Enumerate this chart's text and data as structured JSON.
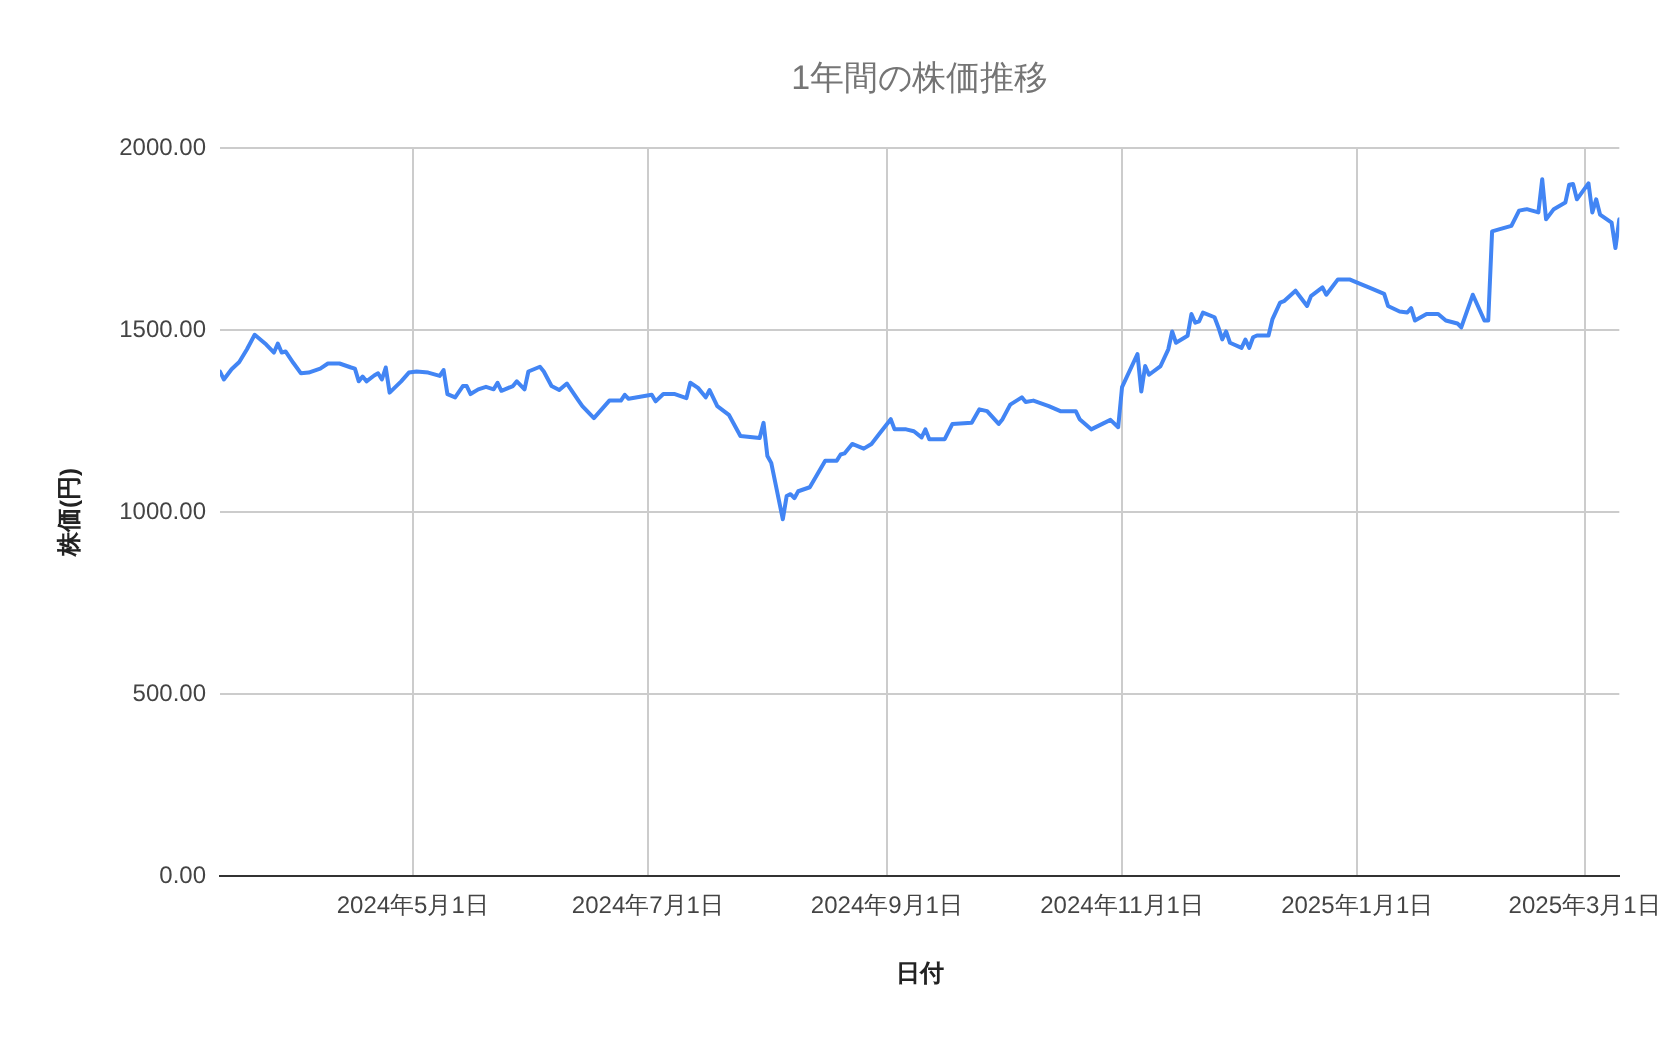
{
  "chart_data": {
    "type": "line",
    "title": "1年間の株価推移",
    "xlabel": "日付",
    "ylabel": "株価(円)",
    "grid": true,
    "marker": "none",
    "line_style": "solid",
    "xlim": [
      "2024-03-12",
      "2025-03-10"
    ],
    "xticks": [
      {
        "value": "2024-05-01",
        "label": "2024年5月1日"
      },
      {
        "value": "2024-07-01",
        "label": "2024年7月1日"
      },
      {
        "value": "2024-09-01",
        "label": "2024年9月1日"
      },
      {
        "value": "2024-11-01",
        "label": "2024年11月1日"
      },
      {
        "value": "2025-01-01",
        "label": "2025年1月1日"
      },
      {
        "value": "2025-03-01",
        "label": "2025年3月1日"
      }
    ],
    "ylim": [
      0,
      2000
    ],
    "yticks": [
      {
        "value": 0,
        "label": "0.00"
      },
      {
        "value": 500,
        "label": "500.00"
      },
      {
        "value": 1000,
        "label": "1000.00"
      },
      {
        "value": 1500,
        "label": "1500.00"
      },
      {
        "value": 2000,
        "label": "2000.00"
      }
    ],
    "x": [
      "2024-03-12",
      "2024-03-13",
      "2024-03-15",
      "2024-03-17",
      "2024-03-19",
      "2024-03-21",
      "2024-03-24",
      "2024-03-26",
      "2024-03-27",
      "2024-03-28",
      "2024-03-29",
      "2024-03-31",
      "2024-04-02",
      "2024-04-04",
      "2024-04-07",
      "2024-04-09",
      "2024-04-12",
      "2024-04-15",
      "2024-04-16",
      "2024-04-17",
      "2024-04-18",
      "2024-04-19",
      "2024-04-21",
      "2024-04-22",
      "2024-04-23",
      "2024-04-24",
      "2024-04-25",
      "2024-04-28",
      "2024-04-30",
      "2024-05-02",
      "2024-05-05",
      "2024-05-08",
      "2024-05-09",
      "2024-05-10",
      "2024-05-12",
      "2024-05-14",
      "2024-05-15",
      "2024-05-16",
      "2024-05-18",
      "2024-05-20",
      "2024-05-22",
      "2024-05-23",
      "2024-05-24",
      "2024-05-27",
      "2024-05-28",
      "2024-05-30",
      "2024-05-31",
      "2024-06-03",
      "2024-06-04",
      "2024-06-06",
      "2024-06-08",
      "2024-06-10",
      "2024-06-13",
      "2024-06-14",
      "2024-06-17",
      "2024-06-21",
      "2024-06-24",
      "2024-06-25",
      "2024-06-26",
      "2024-07-02",
      "2024-07-03",
      "2024-07-05",
      "2024-07-08",
      "2024-07-11",
      "2024-07-12",
      "2024-07-14",
      "2024-07-16",
      "2024-07-17",
      "2024-07-19",
      "2024-07-22",
      "2024-07-25",
      "2024-07-30",
      "2024-07-31",
      "2024-08-01",
      "2024-08-02",
      "2024-08-05",
      "2024-08-06",
      "2024-08-07",
      "2024-08-08",
      "2024-08-09",
      "2024-08-12",
      "2024-08-16",
      "2024-08-19",
      "2024-08-20",
      "2024-08-21",
      "2024-08-23",
      "2024-08-26",
      "2024-08-28",
      "2024-08-30",
      "2024-09-02",
      "2024-09-03",
      "2024-09-06",
      "2024-09-08",
      "2024-09-10",
      "2024-09-11",
      "2024-09-12",
      "2024-09-16",
      "2024-09-18",
      "2024-09-23",
      "2024-09-25",
      "2024-09-27",
      "2024-09-30",
      "2024-10-01",
      "2024-10-03",
      "2024-10-06",
      "2024-10-07",
      "2024-10-09",
      "2024-10-13",
      "2024-10-16",
      "2024-10-20",
      "2024-10-21",
      "2024-10-24",
      "2024-10-29",
      "2024-10-31",
      "2024-11-01",
      "2024-11-05",
      "2024-11-06",
      "2024-11-07",
      "2024-11-08",
      "2024-11-11",
      "2024-11-13",
      "2024-11-14",
      "2024-11-15",
      "2024-11-18",
      "2024-11-19",
      "2024-11-20",
      "2024-11-21",
      "2024-11-22",
      "2024-11-25",
      "2024-11-26",
      "2024-11-27",
      "2024-11-28",
      "2024-11-29",
      "2024-12-02",
      "2024-12-03",
      "2024-12-04",
      "2024-12-05",
      "2024-12-06",
      "2024-12-09",
      "2024-12-10",
      "2024-12-12",
      "2024-12-13",
      "2024-12-16",
      "2024-12-19",
      "2024-12-20",
      "2024-12-23",
      "2024-12-24",
      "2024-12-27",
      "2024-12-30",
      "2025-01-01",
      "2025-01-04",
      "2025-01-08",
      "2025-01-09",
      "2025-01-12",
      "2025-01-14",
      "2025-01-15",
      "2025-01-16",
      "2025-01-19",
      "2025-01-22",
      "2025-01-24",
      "2025-01-27",
      "2025-01-28",
      "2025-01-31",
      "2025-02-03",
      "2025-02-04",
      "2025-02-05",
      "2025-02-07",
      "2025-02-10",
      "2025-02-12",
      "2025-02-14",
      "2025-02-17",
      "2025-02-18",
      "2025-02-19",
      "2025-02-21",
      "2025-02-24",
      "2025-02-25",
      "2025-02-26",
      "2025-02-27",
      "2025-03-02",
      "2025-03-03",
      "2025-03-04",
      "2025-03-05",
      "2025-03-08",
      "2025-03-09",
      "2025-03-10"
    ],
    "series": [
      {
        "color": "#4285f4",
        "values": [
          1386,
          1364,
          1392,
          1412,
          1447,
          1487,
          1460,
          1438,
          1463,
          1438,
          1441,
          1410,
          1381,
          1383,
          1394,
          1408,
          1408,
          1397,
          1394,
          1359,
          1372,
          1359,
          1375,
          1381,
          1364,
          1397,
          1328,
          1359,
          1383,
          1386,
          1383,
          1374,
          1390,
          1324,
          1315,
          1346,
          1346,
          1324,
          1337,
          1344,
          1337,
          1355,
          1333,
          1346,
          1359,
          1337,
          1386,
          1399,
          1386,
          1346,
          1335,
          1353,
          1306,
          1291,
          1258,
          1306,
          1306,
          1322,
          1311,
          1322,
          1304,
          1324,
          1324,
          1313,
          1355,
          1341,
          1315,
          1335,
          1291,
          1267,
          1209,
          1203,
          1245,
          1154,
          1135,
          980,
          1044,
          1049,
          1038,
          1057,
          1068,
          1141,
          1141,
          1158,
          1161,
          1187,
          1174,
          1187,
          1214,
          1255,
          1227,
          1227,
          1222,
          1205,
          1227,
          1200,
          1200,
          1242,
          1245,
          1282,
          1277,
          1242,
          1255,
          1295,
          1315,
          1302,
          1306,
          1291,
          1277,
          1277,
          1255,
          1227,
          1253,
          1233,
          1343,
          1434,
          1331,
          1401,
          1377,
          1401,
          1447,
          1496,
          1465,
          1484,
          1544,
          1520,
          1524,
          1548,
          1535,
          1507,
          1474,
          1496,
          1465,
          1451,
          1474,
          1451,
          1480,
          1485,
          1485,
          1529,
          1575,
          1579,
          1608,
          1566,
          1593,
          1617,
          1597,
          1639,
          1639,
          1630,
          1617,
          1599,
          1566,
          1551,
          1548,
          1560,
          1526,
          1544,
          1544,
          1526,
          1518,
          1507,
          1597,
          1526,
          1526,
          1771,
          1777,
          1786,
          1828,
          1832,
          1823,
          1914,
          1804,
          1832,
          1850,
          1899,
          1901,
          1859,
          1903,
          1823,
          1859,
          1817,
          1795,
          1725,
          1804
        ]
      }
    ]
  }
}
